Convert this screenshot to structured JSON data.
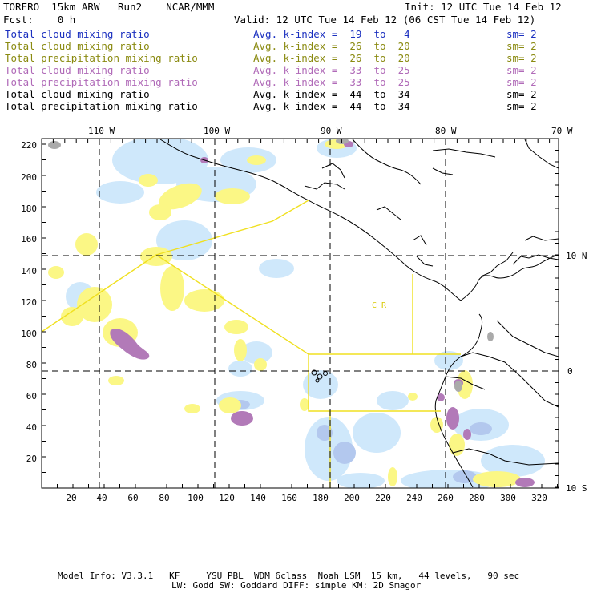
{
  "header": {
    "model": "TORERO  15km ARW   Run2    NCAR/MMM",
    "init": "Init: 12 UTC Tue 14 Feb 12",
    "fcst": "Fcst:    0 h",
    "valid": "Valid: 12 UTC Tue 14 Feb 12 (06 CST Tue 14 Feb 12)"
  },
  "legend": [
    {
      "field": "Total cloud mixing ratio",
      "kindex": "Avg. k-index =  19  to   4",
      "sm": "sm= 2",
      "color": "#1a2fbf"
    },
    {
      "field": "Total cloud mixing ratio",
      "kindex": "Avg. k-index =  26  to  20",
      "sm": "sm= 2",
      "color": "#8a8a10"
    },
    {
      "field": "Total precipitation mixing ratio",
      "kindex": "Avg. k-index =  26  to  20",
      "sm": "sm= 2",
      "color": "#8a8a10"
    },
    {
      "field": "Total cloud mixing ratio",
      "kindex": "Avg. k-index =  33  to  25",
      "sm": "sm= 2",
      "color": "#b06ab8"
    },
    {
      "field": "Total precipitation mixing ratio",
      "kindex": "Avg. k-index =  33  to  25",
      "sm": "sm= 2",
      "color": "#b06ab8"
    },
    {
      "field": "Total cloud mixing ratio",
      "kindex": "Avg. k-index =  44  to  34",
      "sm": "sm= 2",
      "color": "#000000"
    },
    {
      "field": "Total precipitation mixing ratio",
      "kindex": "Avg. k-index =  44  to  34",
      "sm": "sm= 2",
      "color": "#000000"
    }
  ],
  "map": {
    "lon_labels": [
      "110 W",
      "100 W",
      "90 W",
      "80 W",
      "70 W"
    ],
    "lat_labels": [
      "10 N",
      "0",
      "10 S"
    ],
    "y_ticks": [
      "220",
      "200",
      "180",
      "160",
      "140",
      "120",
      "100",
      "80",
      "60",
      "40",
      "20"
    ],
    "x_ticks": [
      "20",
      "40",
      "60",
      "80",
      "100",
      "120",
      "140",
      "160",
      "180",
      "200",
      "220",
      "240",
      "260",
      "280",
      "300",
      "320"
    ],
    "region_label": "C  R"
  },
  "footer": {
    "line1": "Model Info: V3.3.1   KF     YSU PBL  WDM 6class  Noah LSM  15 km,   44 levels,   90 sec",
    "line2": "LW: Godd SW: Goddard DIFF: simple KM: 2D Smagor"
  },
  "colors": {
    "light_blue": "#cfe8fb",
    "mid_blue": "#b3c8ee",
    "yellow": "#fbf785",
    "purple": "#b27ab8",
    "gray": "#aaaaaa",
    "box_yellow": "#f0e020"
  }
}
